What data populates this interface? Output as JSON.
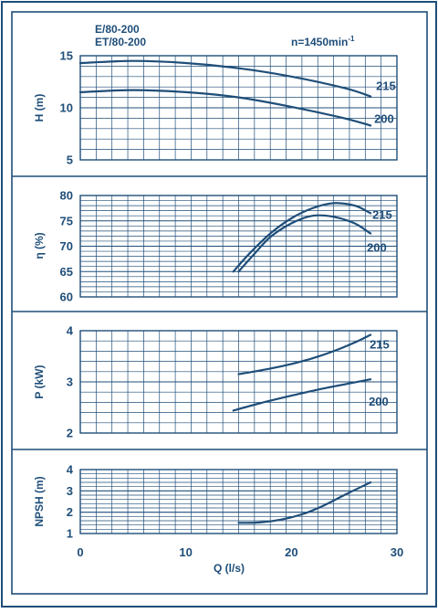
{
  "colors": {
    "ink": "#1f4e79",
    "frame": "#1f4e79",
    "background": "#ffffff"
  },
  "header": {
    "model_line1": "E/80-200",
    "model_line2": "ET/80-200",
    "speed_text": "n=1450min",
    "speed_exponent": "-1"
  },
  "chart_data": [
    {
      "type": "line",
      "ylabel": "H (m)",
      "xlim": [
        0,
        30
      ],
      "ylim": [
        5,
        15
      ],
      "y_ticks": [
        "15",
        "10",
        "5"
      ],
      "grid": true,
      "series": [
        {
          "name": "215",
          "x": [
            0,
            5,
            10,
            15,
            20,
            25,
            27.5
          ],
          "y": [
            14.3,
            14.5,
            14.3,
            13.8,
            13.0,
            11.9,
            11.1
          ]
        },
        {
          "name": "200",
          "x": [
            0,
            5,
            10,
            15,
            20,
            25,
            27.5
          ],
          "y": [
            11.5,
            11.7,
            11.5,
            11.0,
            10.1,
            9.0,
            8.3
          ]
        }
      ]
    },
    {
      "type": "line",
      "ylabel": "η (%)",
      "xlim": [
        0,
        30
      ],
      "ylim": [
        60,
        80
      ],
      "y_ticks": [
        "80",
        "75",
        "70",
        "65",
        "60"
      ],
      "grid": true,
      "series": [
        {
          "name": "215",
          "x": [
            14.5,
            16,
            18,
            20,
            22,
            24,
            26,
            27.5
          ],
          "y": [
            65,
            68.5,
            72.5,
            75.5,
            77.5,
            78.5,
            78,
            76.5
          ]
        },
        {
          "name": "200",
          "x": [
            15,
            16.5,
            18,
            20,
            22,
            24,
            26,
            27.5
          ],
          "y": [
            65,
            68.5,
            71.8,
            74.5,
            76,
            75.8,
            74.5,
            72.5
          ]
        }
      ]
    },
    {
      "type": "line",
      "ylabel": "P (kW)",
      "xlim": [
        0,
        30
      ],
      "ylim": [
        2,
        4
      ],
      "y_ticks": [
        "4",
        "3",
        "2"
      ],
      "grid": true,
      "series": [
        {
          "name": "215",
          "x": [
            15,
            18,
            20,
            22,
            24,
            26,
            27.5
          ],
          "y": [
            3.15,
            3.26,
            3.35,
            3.46,
            3.6,
            3.77,
            3.92
          ]
        },
        {
          "name": "200",
          "x": [
            14.5,
            17,
            20,
            23,
            26,
            27.5
          ],
          "y": [
            2.44,
            2.58,
            2.73,
            2.87,
            2.99,
            3.05
          ]
        }
      ]
    },
    {
      "type": "line",
      "ylabel": "NPSH (m)",
      "xlabel": "Q (l/s)",
      "xlim": [
        0,
        30
      ],
      "ylim": [
        1,
        4
      ],
      "y_ticks": [
        "4",
        "3",
        "2",
        "1"
      ],
      "x_ticks": [
        "0",
        "10",
        "20",
        "30"
      ],
      "grid": true,
      "series": [
        {
          "x": [
            15,
            17,
            19,
            21,
            23,
            25,
            27.5
          ],
          "y": [
            1.5,
            1.52,
            1.65,
            1.9,
            2.3,
            2.8,
            3.4
          ]
        }
      ]
    }
  ]
}
